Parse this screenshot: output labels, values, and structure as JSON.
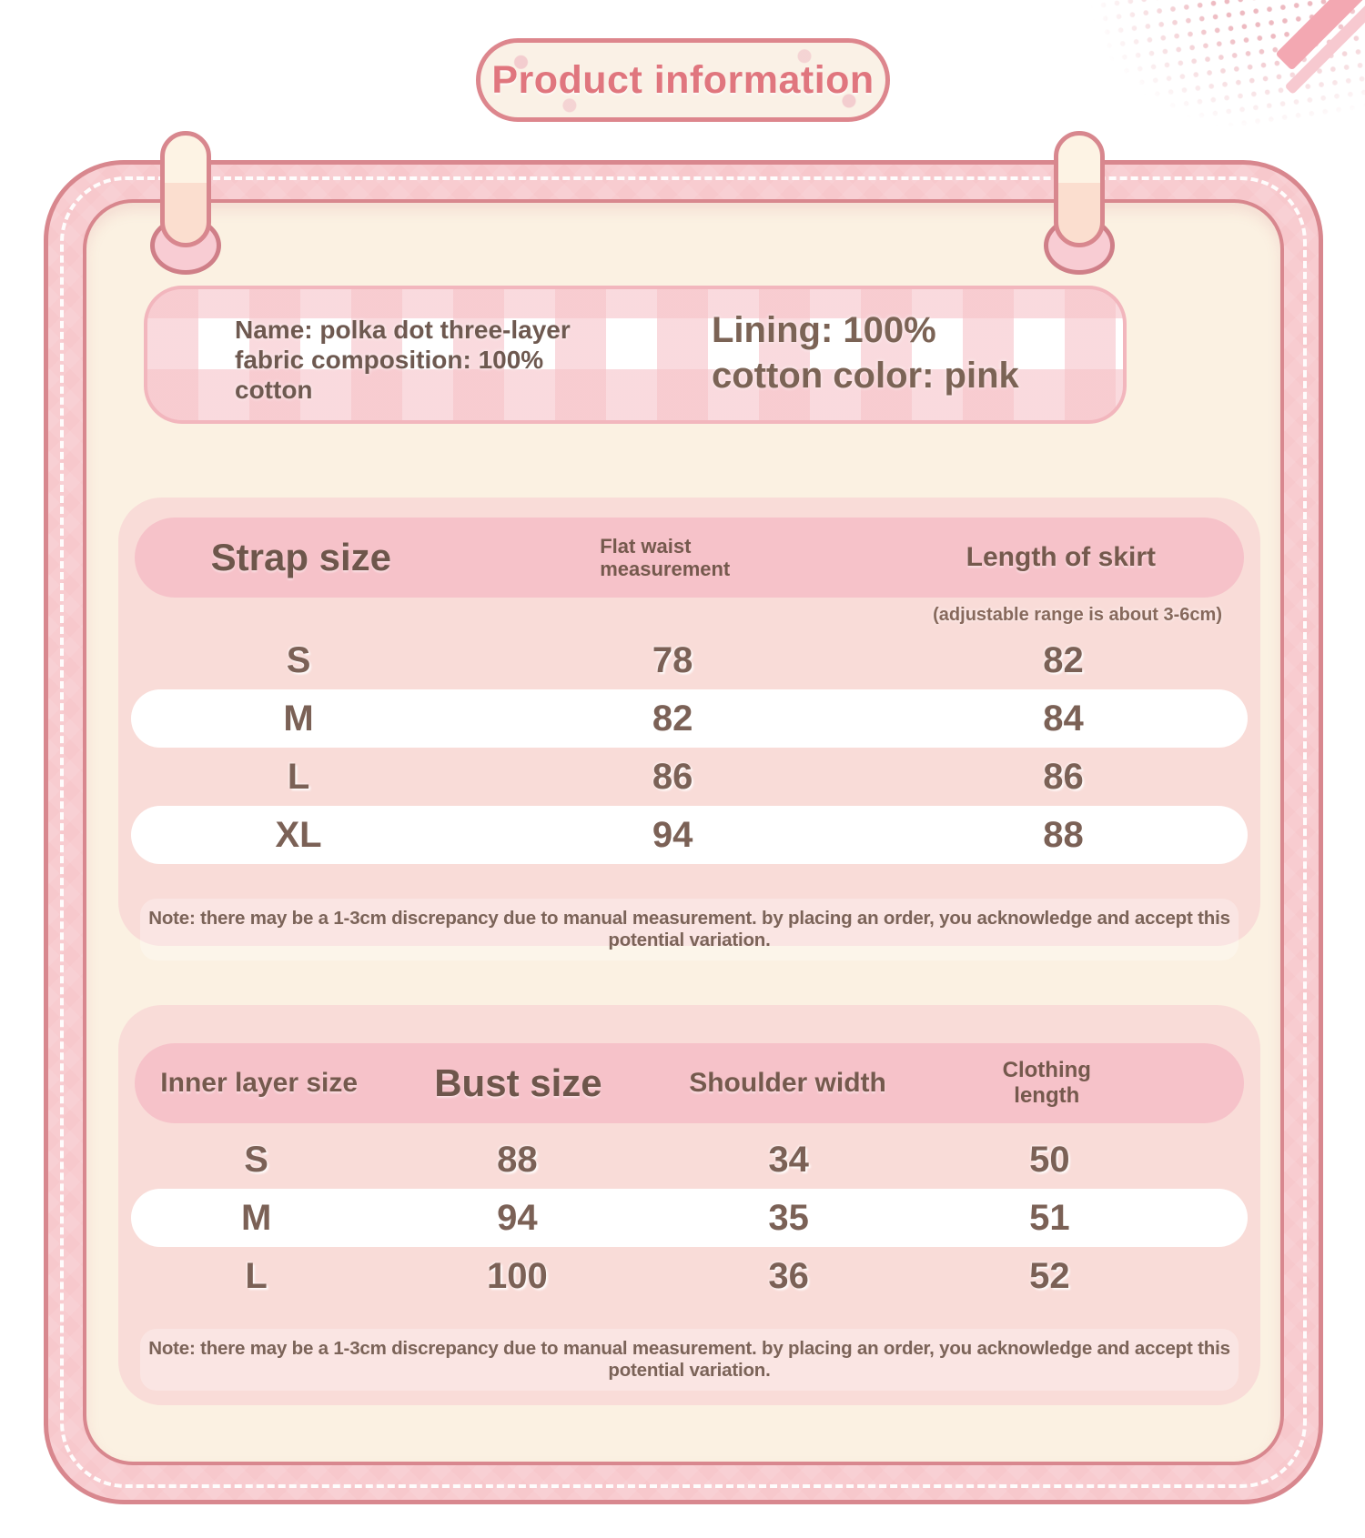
{
  "title": "Product information",
  "banner": {
    "left": [
      "Name: polka dot three-layer",
      "fabric composition: 100%",
      "cotton"
    ],
    "right": [
      "Lining: 100%",
      "cotton color: pink"
    ]
  },
  "tables": [
    {
      "headers": [
        "Strap size",
        "Flat waist measurement",
        "Length of skirt"
      ],
      "header_note": "(adjustable range is about 3-6cm)",
      "rows": [
        [
          "S",
          "78",
          "82"
        ],
        [
          "M",
          "82",
          "84"
        ],
        [
          "L",
          "86",
          "86"
        ],
        [
          "XL",
          "94",
          "88"
        ]
      ],
      "note": "Note: there may be a 1-3cm discrepancy due to manual measurement. by placing an order, you acknowledge and accept this potential variation."
    },
    {
      "headers": [
        "Inner layer size",
        "Bust size",
        "Shoulder width",
        "Clothing length"
      ],
      "rows": [
        [
          "S",
          "88",
          "34",
          "50"
        ],
        [
          "M",
          "94",
          "35",
          "51"
        ],
        [
          "L",
          "100",
          "36",
          "52"
        ]
      ],
      "note": "Note: there may be a 1-3cm discrepancy due to manual measurement. by placing an order, you acknowledge and accept this potential variation."
    }
  ],
  "colors": {
    "title_pink": "#e0767e",
    "pill_border": "#dd868d",
    "frame_pink": "#f7c8cc",
    "frame_outline": "#d8878e",
    "panel_cream": "#fbf1e2",
    "table_bg": "#f9dcd8",
    "header_pill": "#f6c2c9",
    "row_white": "#ffffff",
    "text_brown": "#7b6156"
  }
}
